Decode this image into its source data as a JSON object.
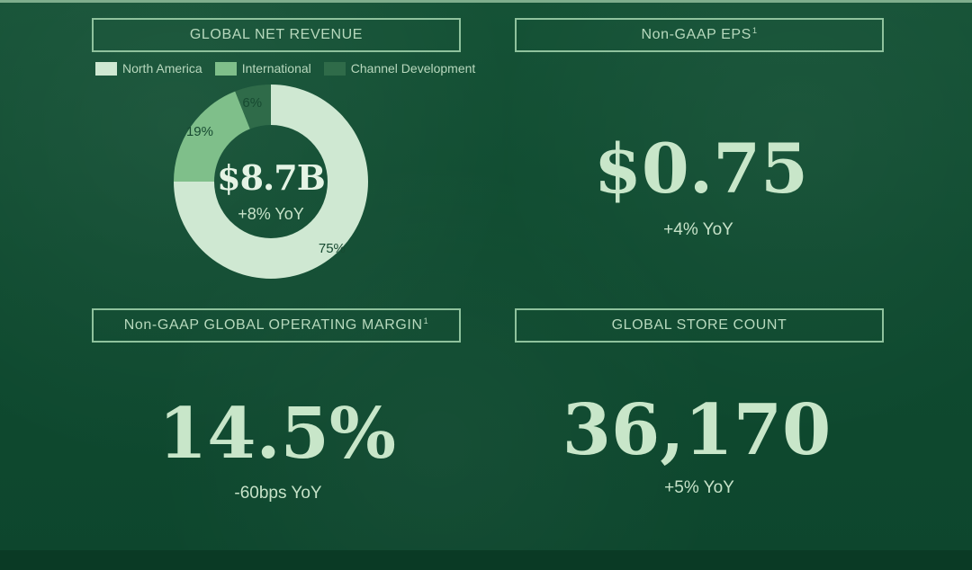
{
  "panels": {
    "revenue": {
      "title": "GLOBAL NET REVENUE",
      "center_value": "$8.7B",
      "center_change": "+8% YoY"
    },
    "eps": {
      "title": "Non-GAAP EPS",
      "superscript": "1",
      "value": "$0.75",
      "change": "+4% YoY"
    },
    "margin": {
      "title": "Non-GAAP GLOBAL OPERATING MARGIN",
      "superscript": "1",
      "value": "14.5%",
      "change": "-60bps YoY"
    },
    "stores": {
      "title": "GLOBAL STORE COUNT",
      "value": "36,170",
      "change": "+5% YoY"
    }
  },
  "chart_data": {
    "type": "pie",
    "title": "GLOBAL NET REVENUE",
    "legend_placement": "top",
    "series": [
      {
        "name": "North America",
        "value": 75,
        "label": "75%",
        "color": "#cfe8d2"
      },
      {
        "name": "International",
        "value": 19,
        "label": "19%",
        "color": "#7fbf8a"
      },
      {
        "name": "Channel Development",
        "value": 6,
        "label": "6%",
        "color": "#2f6b49"
      }
    ]
  },
  "colors": {
    "background": "#0f4a2e",
    "border": "#8fc29d",
    "text": "#c8e6c9"
  }
}
